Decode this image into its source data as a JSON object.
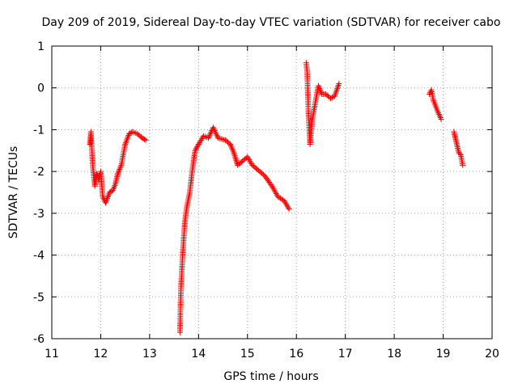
{
  "chart_data": {
    "type": "scatter",
    "title": "Day 209 of 2019, Sidereal Day-to-day VTEC variation (SDTVAR) for receiver cabo",
    "xlabel": "GPS time / hours",
    "ylabel": "SDTVAR / TECUs",
    "xlim": [
      11,
      20
    ],
    "ylim": [
      -6,
      1
    ],
    "xticks": [
      "11",
      "12",
      "13",
      "14",
      "15",
      "16",
      "17",
      "18",
      "19",
      "20"
    ],
    "yticks": [
      "1",
      "0",
      "-1",
      "-2",
      "-3",
      "-4",
      "-5",
      "-6"
    ],
    "grid": true,
    "marker": "+",
    "color": "#ff0000",
    "series": [
      {
        "name": "SDTVAR",
        "anchors": [
          [
            [
              11.78,
              -1.35
            ],
            [
              11.8,
              -1.05
            ],
            [
              11.84,
              -1.9
            ],
            [
              11.88,
              -2.35
            ],
            [
              11.92,
              -2.05
            ],
            [
              11.96,
              -2.2
            ],
            [
              12.0,
              -2.0
            ],
            [
              12.04,
              -2.6
            ],
            [
              12.1,
              -2.75
            ],
            [
              12.18,
              -2.5
            ],
            [
              12.25,
              -2.45
            ],
            [
              12.3,
              -2.3
            ],
            [
              12.35,
              -2.05
            ],
            [
              12.42,
              -1.85
            ],
            [
              12.5,
              -1.35
            ],
            [
              12.58,
              -1.1
            ],
            [
              12.65,
              -1.05
            ],
            [
              12.75,
              -1.1
            ],
            [
              12.85,
              -1.2
            ],
            [
              12.92,
              -1.25
            ]
          ],
          [
            [
              13.62,
              -5.85
            ],
            [
              13.64,
              -4.8
            ],
            [
              13.68,
              -3.9
            ],
            [
              13.72,
              -3.2
            ],
            [
              13.76,
              -2.85
            ],
            [
              13.82,
              -2.5
            ],
            [
              13.88,
              -1.9
            ],
            [
              13.93,
              -1.5
            ],
            [
              14.0,
              -1.35
            ],
            [
              14.1,
              -1.15
            ],
            [
              14.2,
              -1.2
            ],
            [
              14.3,
              -0.95
            ],
            [
              14.4,
              -1.2
            ],
            [
              14.55,
              -1.25
            ],
            [
              14.65,
              -1.35
            ],
            [
              14.72,
              -1.55
            ],
            [
              14.8,
              -1.85
            ],
            [
              14.9,
              -1.75
            ],
            [
              15.0,
              -1.65
            ],
            [
              15.1,
              -1.85
            ],
            [
              15.2,
              -1.95
            ],
            [
              15.35,
              -2.1
            ],
            [
              15.5,
              -2.35
            ],
            [
              15.62,
              -2.6
            ],
            [
              15.75,
              -2.7
            ],
            [
              15.85,
              -2.9
            ]
          ],
          [
            [
              16.2,
              0.6
            ],
            [
              16.22,
              0.4
            ],
            [
              16.25,
              -0.7
            ],
            [
              16.28,
              -1.35
            ],
            [
              16.32,
              -0.8
            ],
            [
              16.38,
              -0.4
            ],
            [
              16.45,
              0.05
            ],
            [
              16.52,
              -0.15
            ],
            [
              16.6,
              -0.15
            ],
            [
              16.7,
              -0.25
            ],
            [
              16.78,
              -0.2
            ],
            [
              16.87,
              0.1
            ]
          ],
          [
            [
              18.72,
              -0.15
            ],
            [
              18.76,
              -0.05
            ],
            [
              18.8,
              -0.3
            ],
            [
              18.85,
              -0.45
            ],
            [
              18.9,
              -0.6
            ],
            [
              18.96,
              -0.75
            ]
          ],
          [
            [
              19.22,
              -1.05
            ],
            [
              19.27,
              -1.3
            ],
            [
              19.32,
              -1.55
            ],
            [
              19.36,
              -1.6
            ],
            [
              19.4,
              -1.85
            ]
          ]
        ]
      }
    ]
  }
}
